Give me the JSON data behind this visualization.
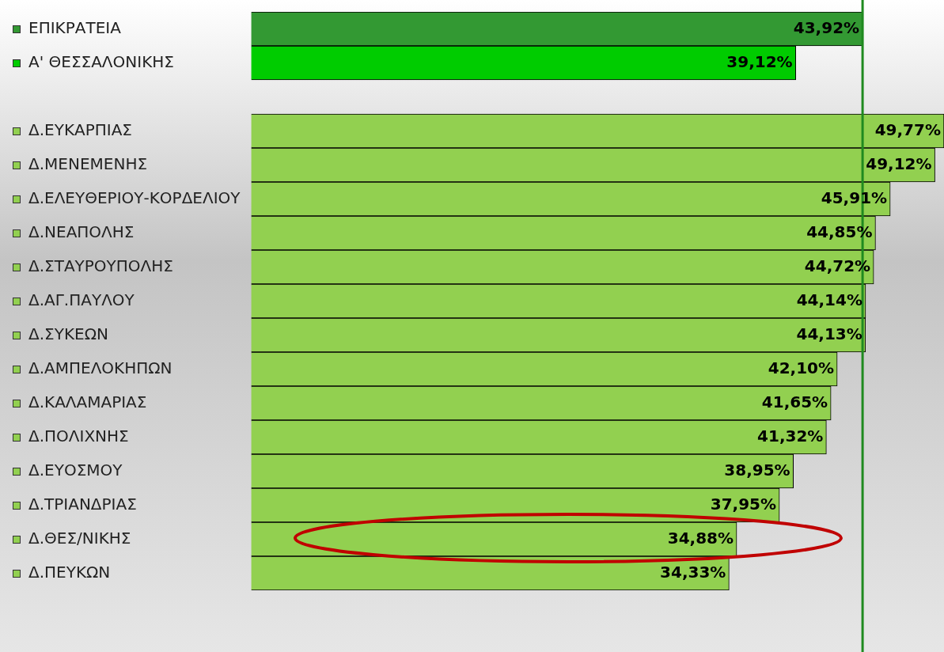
{
  "chart_data": {
    "type": "bar",
    "orientation": "horizontal",
    "categories": [
      "ΕΠΙΚΡΑΤΕΙΑ",
      "Α' ΘΕΣΣΑΛΟΝΙΚΗΣ",
      null,
      "Δ.ΕΥΚΑΡΠΙΑΣ",
      "Δ.ΜΕΝΕΜΕΝΗΣ",
      "Δ.ΕΛΕΥΘΕΡΙΟΥ-ΚΟΡΔΕΛΙΟΥ",
      "Δ.ΝΕΑΠΟΛΗΣ",
      "Δ.ΣΤΑΥΡΟΥΠΟΛΗΣ",
      "Δ.ΑΓ.ΠΑΥΛΟΥ",
      "Δ.ΣΥΚΕΩΝ",
      "Δ.ΑΜΠΕΛΟΚΗΠΩΝ",
      "Δ.ΚΑΛΑΜΑΡΙΑΣ",
      "Δ.ΠΟΛΙΧΝΗΣ",
      "Δ.ΕΥΟΣΜΟΥ",
      "Δ.ΤΡΙΑΝΔΡΙΑΣ",
      "Δ.ΘΕΣ/ΝΙΚΗΣ",
      "Δ.ΠΕΥΚΩΝ"
    ],
    "values": [
      43.92,
      39.12,
      null,
      49.77,
      49.12,
      45.91,
      44.85,
      44.72,
      44.14,
      44.13,
      42.1,
      41.65,
      41.32,
      38.95,
      37.95,
      34.88,
      34.33
    ],
    "value_labels": [
      "43,92%",
      "39,12%",
      null,
      "49,77%",
      "49,12%",
      "45,91%",
      "44,85%",
      "44,72%",
      "44,14%",
      "44,13%",
      "42,10%",
      "41,65%",
      "41,32%",
      "38,95%",
      "37,95%",
      "34,88%",
      "34,33%"
    ],
    "colors": [
      "#339933",
      "#00cc00",
      null,
      "#92d050",
      "#92d050",
      "#92d050",
      "#92d050",
      "#92d050",
      "#92d050",
      "#92d050",
      "#92d050",
      "#92d050",
      "#92d050",
      "#92d050",
      "#92d050",
      "#92d050",
      "#92d050"
    ],
    "ref_lines": [
      {
        "axis": "x",
        "value": 43.92,
        "color": "#1f8a1f"
      }
    ],
    "legend": false,
    "grid": false
  }
}
